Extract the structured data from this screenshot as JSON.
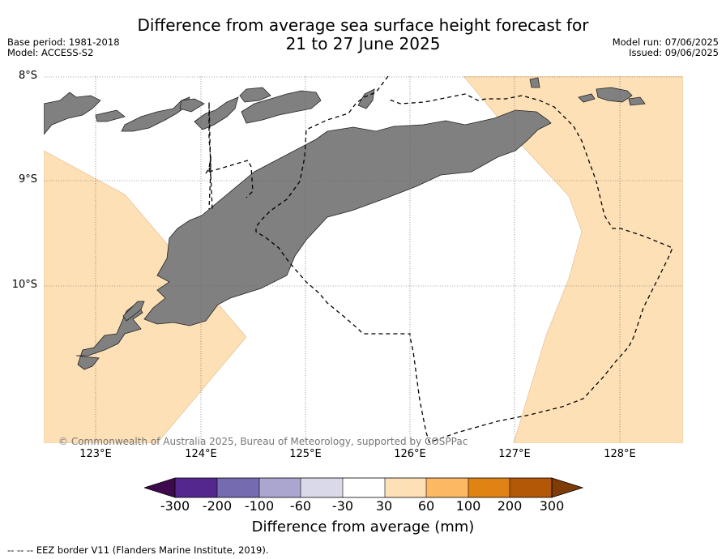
{
  "title_line1": "Difference from average sea surface height forecast for",
  "title_line2": "21 to 27 June 2025",
  "meta_left": {
    "base_period": "Base period: 1981-2018",
    "model": "Model: ACCESS-S2"
  },
  "meta_right": {
    "model_run": "Model run: 07/06/2025",
    "issued": "Issued: 09/06/2025"
  },
  "lat_labels": [
    "8°S",
    "9°S",
    "10°S"
  ],
  "lon_labels": [
    "123°E",
    "124°E",
    "125°E",
    "126°E",
    "127°E",
    "128°E"
  ],
  "copyright": "© Commonwealth of Australia 2025, Bureau of Meteorology, supported by COSPPac",
  "colorbar": {
    "ticks": [
      "-300",
      "-200",
      "-100",
      "-60",
      "-30",
      "30",
      "60",
      "100",
      "200",
      "300"
    ],
    "colors": [
      "#3f0a4d",
      "#54278f",
      "#756bb1",
      "#aba6d0",
      "#d9d9ea",
      "#ffffff",
      "#fee0b6",
      "#fdb863",
      "#e08214",
      "#b35806",
      "#7f3b08"
    ],
    "label": "Difference from average (mm)"
  },
  "footnote": "--  --  -- EEZ border V11 (Flanders Marine Institute, 2019).",
  "legend_colors": {
    "land": "#808080",
    "positive_30_60": "#fee0b6",
    "neutral": "#ffffff"
  }
}
